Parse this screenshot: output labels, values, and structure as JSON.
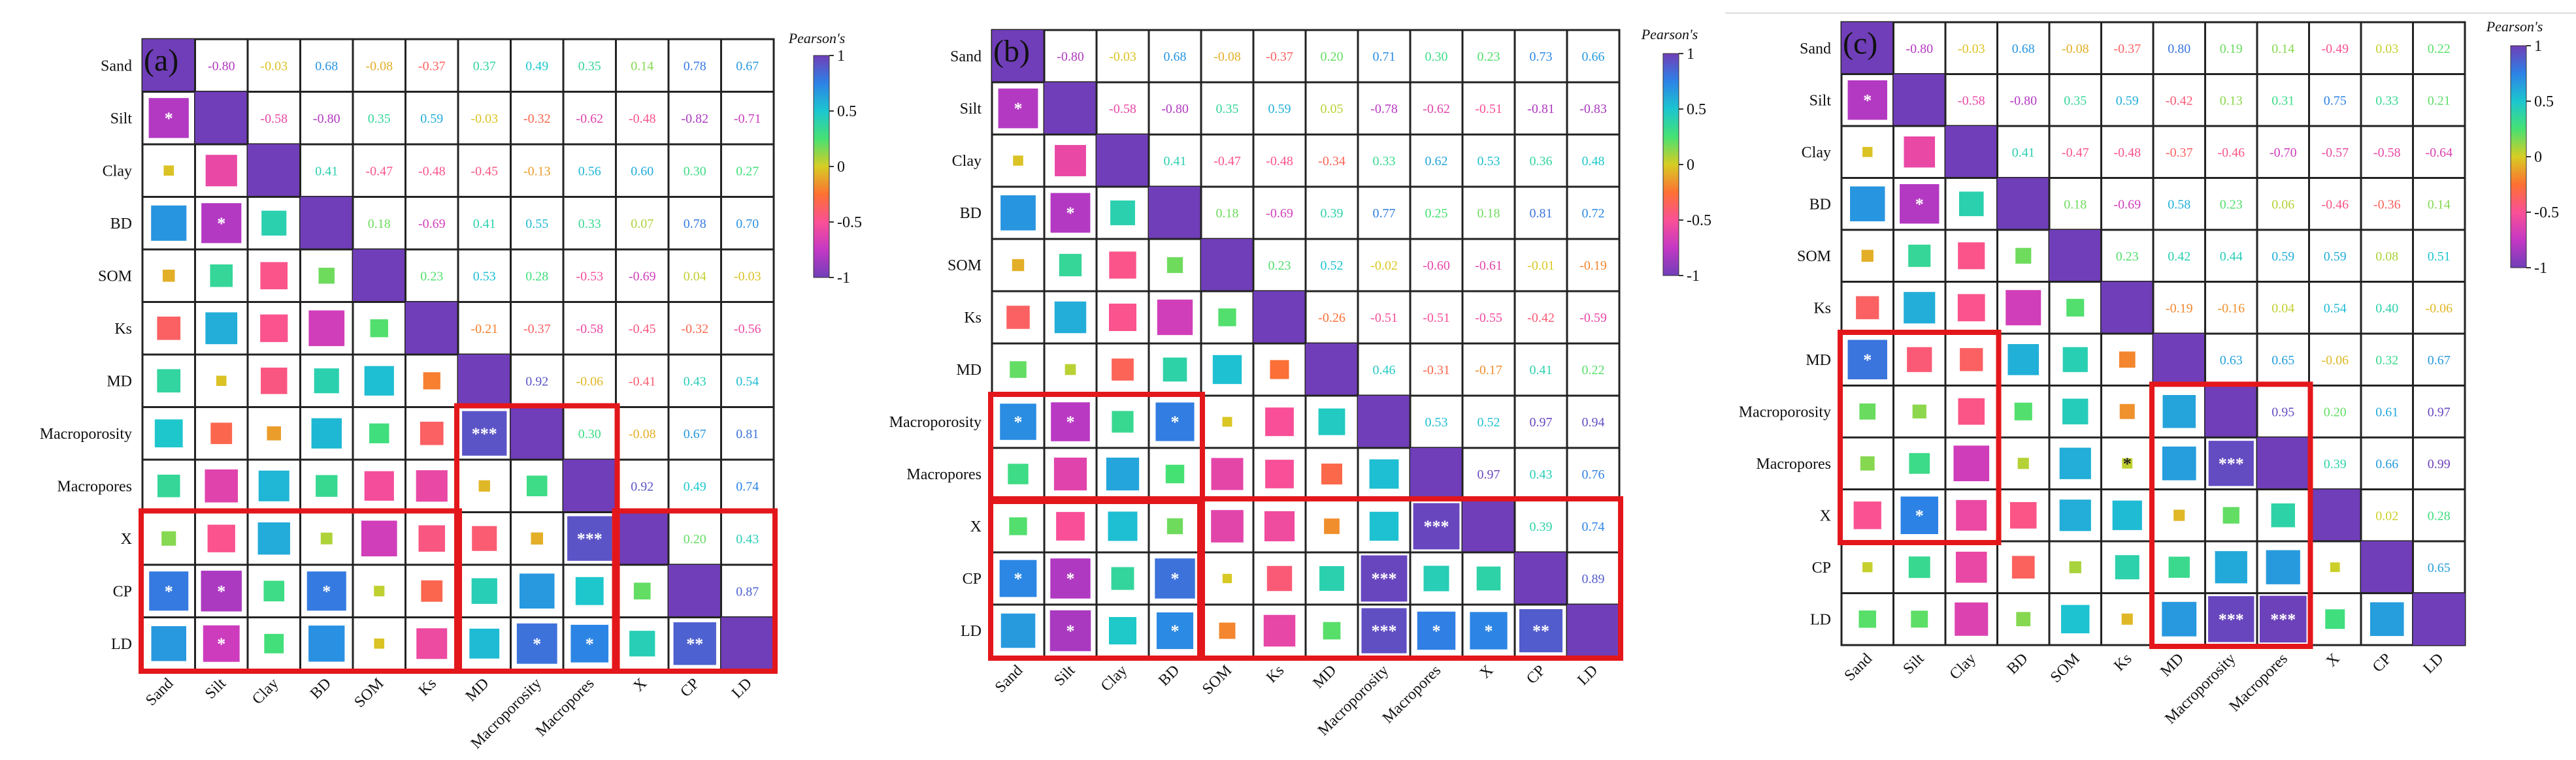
{
  "chart_data": [
    {
      "type": "heatmap",
      "panel_label": "(a)",
      "variables": [
        "Sand",
        "Silt",
        "Clay",
        "BD",
        "SOM",
        "Ks",
        "MD",
        "Macroporosity",
        "Macropores",
        "X",
        "CP",
        "LD"
      ],
      "upper": [
        [
          "-0.80",
          "-0.03",
          "0.68",
          "-0.08",
          "-0.37",
          "0.37",
          "0.49",
          "0.35",
          "0.14",
          "0.78",
          "0.67"
        ],
        [
          "-0.58",
          "-0.80",
          "0.35",
          "0.59",
          "-0.03",
          "-0.32",
          "-0.62",
          "-0.48",
          "-0.82",
          "-0.71"
        ],
        [
          "0.41",
          "-0.47",
          "-0.48",
          "-0.45",
          "-0.13",
          "0.56",
          "0.60",
          "0.30",
          "0.27"
        ],
        [
          "0.18",
          "-0.69",
          "0.41",
          "0.55",
          "0.33",
          "0.07",
          "0.78",
          "0.70"
        ],
        [
          "0.23",
          "0.53",
          "0.28",
          "-0.53",
          "-0.69",
          "0.04",
          "-0.03"
        ],
        [
          "-0.21",
          "-0.37",
          "-0.58",
          "-0.45",
          "-0.32",
          "-0.56"
        ],
        [
          "0.92",
          "-0.06",
          "-0.41",
          "0.43",
          "0.54"
        ],
        [
          "0.30",
          "-0.08",
          "0.67",
          "0.81"
        ],
        [
          "0.92",
          "0.49",
          "0.74"
        ],
        [
          "0.20",
          "0.43"
        ],
        [
          "0.87"
        ]
      ],
      "significance": [
        {
          "row": 1,
          "col": 0,
          "mark": "*"
        },
        {
          "row": 3,
          "col": 1,
          "mark": "*"
        },
        {
          "row": 7,
          "col": 6,
          "mark": "***"
        },
        {
          "row": 9,
          "col": 8,
          "mark": "***"
        },
        {
          "row": 10,
          "col": 0,
          "mark": "*"
        },
        {
          "row": 10,
          "col": 1,
          "mark": "*"
        },
        {
          "row": 10,
          "col": 3,
          "mark": "*"
        },
        {
          "row": 11,
          "col": 1,
          "mark": "*"
        },
        {
          "row": 11,
          "col": 7,
          "mark": "*"
        },
        {
          "row": 11,
          "col": 8,
          "mark": "*"
        },
        {
          "row": 11,
          "col": 10,
          "mark": "**"
        }
      ],
      "highlight_groups": [
        {
          "rows": [
            7,
            11
          ],
          "cols": [
            6,
            8
          ]
        },
        {
          "rows": [
            9,
            11
          ],
          "cols": [
            0,
            5
          ]
        },
        {
          "rows": [
            9,
            11
          ],
          "cols": [
            9,
            11
          ]
        }
      ],
      "colorbar": {
        "title": "Pearson's",
        "ticks": [
          "1",
          "0.5",
          "0",
          "-0.5",
          "-1"
        ],
        "range": [
          -1,
          1
        ]
      }
    },
    {
      "type": "heatmap",
      "panel_label": "(b)",
      "variables": [
        "Sand",
        "Silt",
        "Clay",
        "BD",
        "SOM",
        "Ks",
        "MD",
        "Macroporosity",
        "Macropores",
        "X",
        "CP",
        "LD"
      ],
      "upper": [
        [
          "-0.80",
          "-0.03",
          "0.68",
          "-0.08",
          "-0.37",
          "0.20",
          "0.71",
          "0.30",
          "0.23",
          "0.73",
          "0.66"
        ],
        [
          "-0.58",
          "-0.80",
          "0.35",
          "0.59",
          "0.05",
          "-0.78",
          "-0.62",
          "-0.51",
          "-0.81",
          "-0.83"
        ],
        [
          "0.41",
          "-0.47",
          "-0.48",
          "-0.34",
          "0.33",
          "0.62",
          "0.53",
          "0.36",
          "0.48"
        ],
        [
          "0.18",
          "-0.69",
          "0.39",
          "0.77",
          "0.25",
          "0.18",
          "0.81",
          "0.72"
        ],
        [
          "0.23",
          "0.52",
          "-0.02",
          "-0.60",
          "-0.61",
          "-0.01",
          "-0.19"
        ],
        [
          "-0.26",
          "-0.51",
          "-0.51",
          "-0.55",
          "-0.42",
          "-0.59"
        ],
        [
          "0.46",
          "-0.31",
          "-0.17",
          "0.41",
          "0.22"
        ],
        [
          "0.53",
          "0.52",
          "0.97",
          "0.94"
        ],
        [
          "0.97",
          "0.43",
          "0.76"
        ],
        [
          "0.39",
          "0.74"
        ],
        [
          "0.89"
        ]
      ],
      "significance": [
        {
          "row": 1,
          "col": 0,
          "mark": "*"
        },
        {
          "row": 3,
          "col": 1,
          "mark": "*"
        },
        {
          "row": 7,
          "col": 0,
          "mark": "*"
        },
        {
          "row": 7,
          "col": 1,
          "mark": "*"
        },
        {
          "row": 7,
          "col": 3,
          "mark": "*"
        },
        {
          "row": 9,
          "col": 8,
          "mark": "***"
        },
        {
          "row": 10,
          "col": 0,
          "mark": "*"
        },
        {
          "row": 10,
          "col": 1,
          "mark": "*"
        },
        {
          "row": 10,
          "col": 3,
          "mark": "*"
        },
        {
          "row": 10,
          "col": 7,
          "mark": "***"
        },
        {
          "row": 11,
          "col": 1,
          "mark": "*"
        },
        {
          "row": 11,
          "col": 3,
          "mark": "*"
        },
        {
          "row": 11,
          "col": 7,
          "mark": "***"
        },
        {
          "row": 11,
          "col": 8,
          "mark": "*"
        },
        {
          "row": 11,
          "col": 9,
          "mark": "*"
        },
        {
          "row": 11,
          "col": 10,
          "mark": "**"
        }
      ],
      "highlight_groups": [
        {
          "rows": [
            7,
            8
          ],
          "cols": [
            0,
            3
          ]
        },
        {
          "rows": [
            9,
            11
          ],
          "cols": [
            0,
            3
          ]
        },
        {
          "rows": [
            9,
            11
          ],
          "cols": [
            4,
            11
          ]
        }
      ],
      "colorbar": {
        "title": "Pearson's",
        "ticks": [
          "1",
          "0.5",
          "0",
          "-0.5",
          "-1"
        ],
        "range": [
          -1,
          1
        ]
      }
    },
    {
      "type": "heatmap",
      "panel_label": "(c)",
      "variables": [
        "Sand",
        "Silt",
        "Clay",
        "BD",
        "SOM",
        "Ks",
        "MD",
        "Macroporosity",
        "Macropores",
        "X",
        "CP",
        "LD"
      ],
      "upper": [
        [
          "-0.80",
          "-0.03",
          "0.68",
          "-0.08",
          "-0.37",
          "0.80",
          "0.19",
          "0.14",
          "-0.49",
          "0.03",
          "0.22"
        ],
        [
          "-0.58",
          "-0.80",
          "0.35",
          "0.59",
          "-0.42",
          "0.13",
          "0.31",
          "0.75",
          "0.33",
          "0.21"
        ],
        [
          "0.41",
          "-0.47",
          "-0.48",
          "-0.37",
          "-0.46",
          "-0.70",
          "-0.57",
          "-0.58",
          "-0.64"
        ],
        [
          "0.18",
          "-0.69",
          "0.58",
          "0.23",
          "0.06",
          "-0.46",
          "-0.36",
          "0.14"
        ],
        [
          "0.23",
          "0.42",
          "0.44",
          "0.59",
          "0.59",
          "0.08",
          "0.51"
        ],
        [
          "-0.19",
          "-0.16",
          "0.04",
          "0.54",
          "0.40",
          "-0.06"
        ],
        [
          "0.63",
          "0.65",
          "-0.06",
          "0.32",
          "0.67"
        ],
        [
          "0.95",
          "0.20",
          "0.61",
          "0.97"
        ],
        [
          "0.39",
          "0.66",
          "0.99"
        ],
        [
          "0.02",
          "0.28"
        ],
        [
          "0.65"
        ]
      ],
      "significance": [
        {
          "row": 1,
          "col": 0,
          "mark": "*"
        },
        {
          "row": 3,
          "col": 1,
          "mark": "*"
        },
        {
          "row": 6,
          "col": 0,
          "mark": "*"
        },
        {
          "row": 8,
          "col": 5,
          "mark": "*"
        },
        {
          "row": 8,
          "col": 7,
          "mark": "***"
        },
        {
          "row": 9,
          "col": 1,
          "mark": "*"
        },
        {
          "row": 11,
          "col": 7,
          "mark": "***"
        },
        {
          "row": 11,
          "col": 8,
          "mark": "***"
        }
      ],
      "highlight_groups": [
        {
          "rows": [
            6,
            9
          ],
          "cols": [
            0,
            2
          ]
        },
        {
          "rows": [
            7,
            11
          ],
          "cols": [
            6,
            8
          ]
        }
      ],
      "colorbar": {
        "title": "Pearson's",
        "ticks": [
          "1",
          "0.5",
          "0",
          "-0.5",
          "-1"
        ],
        "range": [
          -1,
          1
        ]
      }
    }
  ]
}
